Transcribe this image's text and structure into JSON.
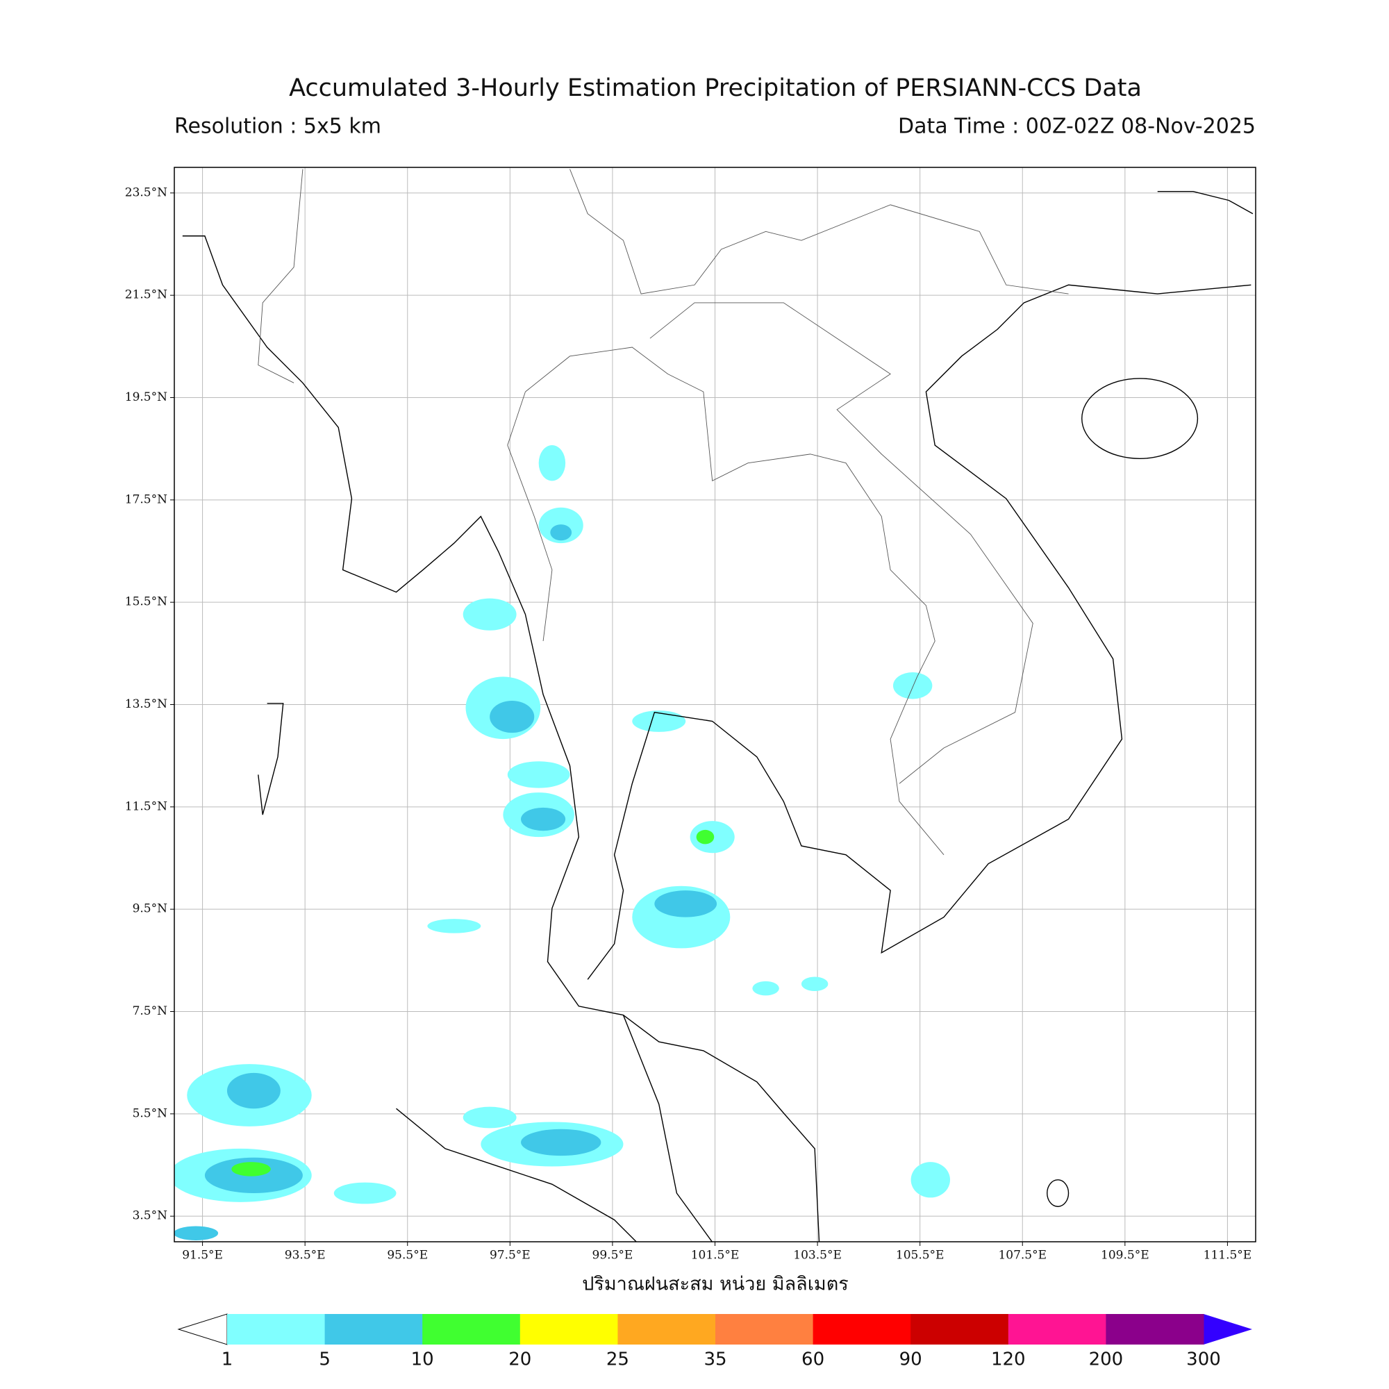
{
  "map": {
    "title": "Accumulated 3-Hourly Estimation Precipitation of PERSIANN-CCS Data",
    "resolution": "Resolution : 5x5 km",
    "data_time": "Data Time : 00Z-02Z 08-Nov-2025",
    "xlabel": "ปริมาณฝนสะสม หน่วย มิลลิเมตร",
    "xlim": [
      90.95,
      112.05
    ],
    "ylim": [
      3,
      24
    ],
    "xticks": [
      {
        "value": 91.5,
        "label": "91.5°E"
      },
      {
        "value": 93.5,
        "label": "93.5°E"
      },
      {
        "value": 95.5,
        "label": "95.5°E"
      },
      {
        "value": 97.5,
        "label": "97.5°E"
      },
      {
        "value": 99.5,
        "label": "99.5°E"
      },
      {
        "value": 101.5,
        "label": "101.5°E"
      },
      {
        "value": 103.5,
        "label": "103.5°E"
      },
      {
        "value": 105.5,
        "label": "105.5°E"
      },
      {
        "value": 107.5,
        "label": "107.5°E"
      },
      {
        "value": 109.5,
        "label": "109.5°E"
      },
      {
        "value": 111.5,
        "label": "111.5°E"
      }
    ],
    "yticks": [
      {
        "value": 3.5,
        "label": "3.5°N"
      },
      {
        "value": 5.5,
        "label": "5.5°N"
      },
      {
        "value": 7.5,
        "label": "7.5°N"
      },
      {
        "value": 9.5,
        "label": "9.5°N"
      },
      {
        "value": 11.5,
        "label": "11.5°N"
      },
      {
        "value": 13.5,
        "label": "13.5°N"
      },
      {
        "value": 15.5,
        "label": "15.5°N"
      },
      {
        "value": 17.5,
        "label": "17.5°N"
      },
      {
        "value": 19.5,
        "label": "19.5°N"
      },
      {
        "value": 21.5,
        "label": "21.5°N"
      },
      {
        "value": 23.5,
        "label": "23.5°N"
      }
    ],
    "grid": true,
    "colorbar": {
      "levels": [
        1,
        5,
        10,
        20,
        25,
        35,
        60,
        90,
        120,
        200,
        300
      ],
      "colors": [
        "#80ffff",
        "#40c8e8",
        "#40ff30",
        "#ffff00",
        "#ffa820",
        "#ff8040",
        "#ff0000",
        "#cc0000",
        "#ff1493",
        "#8b008b"
      ],
      "under_color": "#ffffff",
      "over_color": "#3300ff"
    }
  }
}
